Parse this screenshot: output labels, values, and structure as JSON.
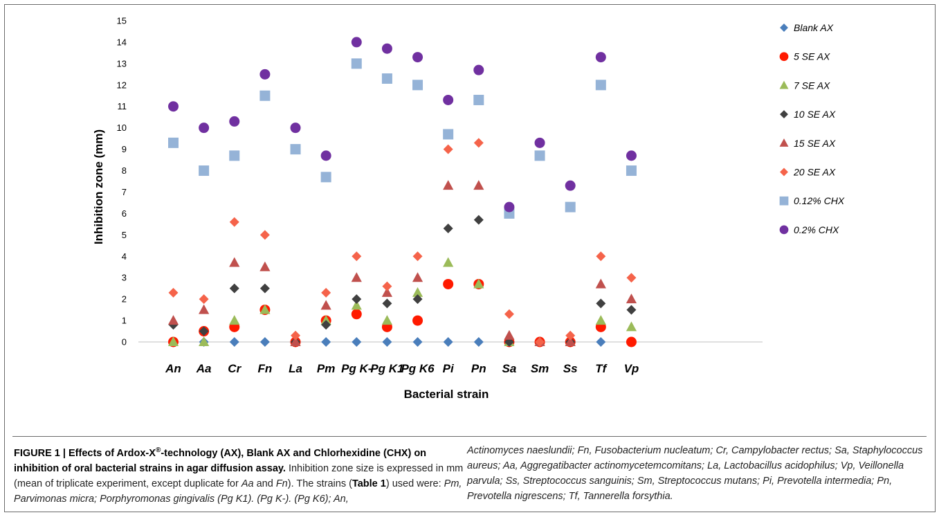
{
  "chart_data": {
    "type": "scatter",
    "ylabel": "Inhibition zone (mm)",
    "xlabel": "Bacterial strain",
    "ylim": [
      0,
      15
    ],
    "yticks": [
      0,
      1,
      2,
      3,
      4,
      5,
      6,
      7,
      8,
      9,
      10,
      11,
      12,
      13,
      14,
      15
    ],
    "categories": [
      "An",
      "Aa",
      "Cr",
      "Fn",
      "La",
      "Pm",
      "Pg K-",
      "Pg K1",
      "Pg K6",
      "Pi",
      "Pn",
      "Sa",
      "Sm",
      "Ss",
      "Tf",
      "Vp"
    ],
    "legend_position": "right",
    "grid": false,
    "series": [
      {
        "name": "Blank AX",
        "marker": "diamond",
        "color": "#4a7ebb",
        "values": [
          0,
          0,
          0,
          0,
          0,
          0,
          0,
          0,
          0,
          0,
          0,
          0,
          0,
          0,
          0,
          0
        ]
      },
      {
        "name": "5 SE AX",
        "marker": "circle",
        "color": "#ff1a00",
        "values": [
          0,
          0.5,
          0.7,
          1.5,
          0,
          1.0,
          1.3,
          0.7,
          1.0,
          2.7,
          2.7,
          0,
          0,
          0,
          0.7,
          0
        ]
      },
      {
        "name": "7 SE AX",
        "marker": "triangle",
        "color": "#9bbb59",
        "values": [
          0,
          0,
          1.0,
          1.5,
          0,
          1.0,
          1.7,
          1.0,
          2.3,
          3.7,
          2.7,
          0,
          0,
          0,
          1.0,
          0.7
        ]
      },
      {
        "name": "10 SE AX",
        "marker": "diamond",
        "color": "#404040",
        "values": [
          0.8,
          0.5,
          2.5,
          2.5,
          0,
          0.8,
          2.0,
          1.8,
          2.0,
          5.3,
          5.7,
          0,
          0,
          0,
          1.8,
          1.5
        ]
      },
      {
        "name": "15 SE AX",
        "marker": "triangle",
        "color": "#c0504d",
        "values": [
          1.0,
          1.5,
          3.7,
          3.5,
          0,
          1.7,
          3.0,
          2.3,
          3.0,
          7.3,
          7.3,
          0.3,
          0,
          0,
          2.7,
          2.0
        ]
      },
      {
        "name": "20 SE AX",
        "marker": "diamond",
        "color": "#f5634a",
        "values": [
          2.3,
          2.0,
          5.6,
          5.0,
          0.3,
          2.3,
          4.0,
          2.6,
          4.0,
          9.0,
          9.3,
          1.3,
          0,
          0.3,
          4.0,
          3.0
        ]
      },
      {
        "name": "0.12% CHX",
        "marker": "square",
        "color": "#95b3d7",
        "values": [
          9.3,
          8.0,
          8.7,
          11.5,
          9.0,
          7.7,
          13.0,
          12.3,
          12.0,
          9.7,
          11.3,
          6.0,
          8.7,
          6.3,
          12.0,
          8.0
        ]
      },
      {
        "name": "0.2% CHX",
        "marker": "circle",
        "color": "#7030a0",
        "values": [
          11.0,
          10.0,
          10.3,
          12.5,
          10.0,
          8.7,
          14.0,
          13.7,
          13.3,
          11.3,
          12.7,
          6.3,
          9.3,
          7.3,
          13.3,
          8.7
        ]
      }
    ]
  },
  "caption": {
    "figure_label": "FIGURE 1 | Effects of Ardox-X",
    "reg_mark": "®",
    "title_rest": "-technology (AX), Blank AX and Chlorhexidine (CHX) on inhibition of oral bacterial strains in agar diffusion assay.",
    "text_a": " Inhibition zone size is expressed in mm (mean of triplicate experiment, except duplicate for ",
    "aa": "Aa",
    "and": " and ",
    "fn": "Fn",
    "text_b": "). The strains (",
    "table_ref": "Table 1",
    "text_c": ") used were: ",
    "left_tail": "Pm, Parvimonas micra; Porphyromonas gingivalis (Pg K1). (Pg K-). (Pg K6); An,",
    "right_text": "Actinomyces naeslundii; Fn, Fusobacterium nucleatum; Cr, Campylobacter rectus; Sa, Staphylococcus aureus; Aa, Aggregatibacter actinomycetemcomitans; La, Lactobacillus acidophilus; Vp, Veillonella parvula; Ss, Streptococcus sanguinis; Sm, Streptococcus mutans; Pi, Prevotella intermedia; Pn, Prevotella nigrescens; Tf, Tannerella forsythia."
  }
}
